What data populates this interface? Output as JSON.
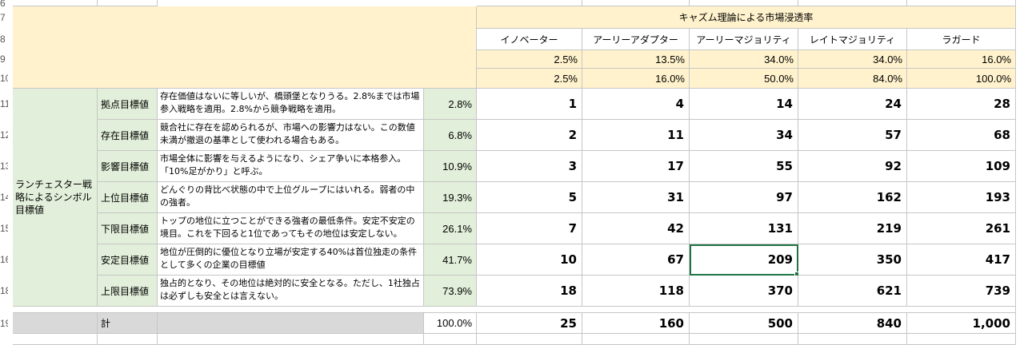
{
  "row_numbers": [
    "6",
    "7",
    "8",
    "9",
    "10",
    "11",
    "12",
    "13",
    "14",
    "15",
    "16",
    "18",
    "19"
  ],
  "header": {
    "title": "キャズム理論による市場浸透率",
    "segments": [
      "イノベーター",
      "アーリーアダプター",
      "アーリーマジョリティ",
      "レイトマジョリティ",
      "ラガード"
    ],
    "shares": [
      "2.5%",
      "13.5%",
      "34.0%",
      "34.0%",
      "16.0%"
    ],
    "cumulative": [
      "2.5%",
      "16.0%",
      "50.0%",
      "84.0%",
      "100.0%"
    ]
  },
  "strategy_label": "ランチェスター戦略によるシンボル目標値",
  "rows": [
    {
      "name": "拠点目標値",
      "desc": "存在価値はないに等しいが、橋頭堡となりうる。2.8%までは市場参入戦略を適用。2.8%から競争戦略を適用。",
      "pct": "2.8%",
      "values": [
        "1",
        "4",
        "14",
        "24",
        "28"
      ]
    },
    {
      "name": "存在目標値",
      "desc": "競合社に存在を認められるが、市場への影響力はない。この数値未満が撤退の基準として使われる場合もある。",
      "pct": "6.8%",
      "values": [
        "2",
        "11",
        "34",
        "57",
        "68"
      ]
    },
    {
      "name": "影響目標値",
      "desc": "市場全体に影響を与えるようになり、シェア争いに本格参入。「10%足がかり」と呼ぶ。",
      "pct": "10.9%",
      "values": [
        "3",
        "17",
        "55",
        "92",
        "109"
      ]
    },
    {
      "name": "上位目標値",
      "desc": "どんぐりの背比べ状態の中で上位グループにはいれる。弱者の中の強者。",
      "pct": "19.3%",
      "values": [
        "5",
        "31",
        "97",
        "162",
        "193"
      ]
    },
    {
      "name": "下限目標値",
      "desc": "トップの地位に立つことができる強者の最低条件。安定不安定の境目。これを下回ると1位であってもその地位は安定しない。",
      "pct": "26.1%",
      "values": [
        "7",
        "42",
        "131",
        "219",
        "261"
      ]
    },
    {
      "name": "安定目標値",
      "desc": "地位が圧倒的に優位となり立場が安定する40%は首位独走の条件として多くの企業の目標値",
      "pct": "41.7%",
      "values": [
        "10",
        "67",
        "209",
        "350",
        "417"
      ]
    },
    {
      "name": "上限目標値",
      "desc": "独占的となり、その地位は絶対的に安全となる。ただし、1社独占は必ずしも安全とは言えない。",
      "pct": "73.9%",
      "values": [
        "18",
        "118",
        "370",
        "621",
        "739"
      ]
    }
  ],
  "total": {
    "label": "計",
    "pct": "100.0%",
    "values": [
      "25",
      "160",
      "500",
      "840",
      "1,000"
    ]
  }
}
